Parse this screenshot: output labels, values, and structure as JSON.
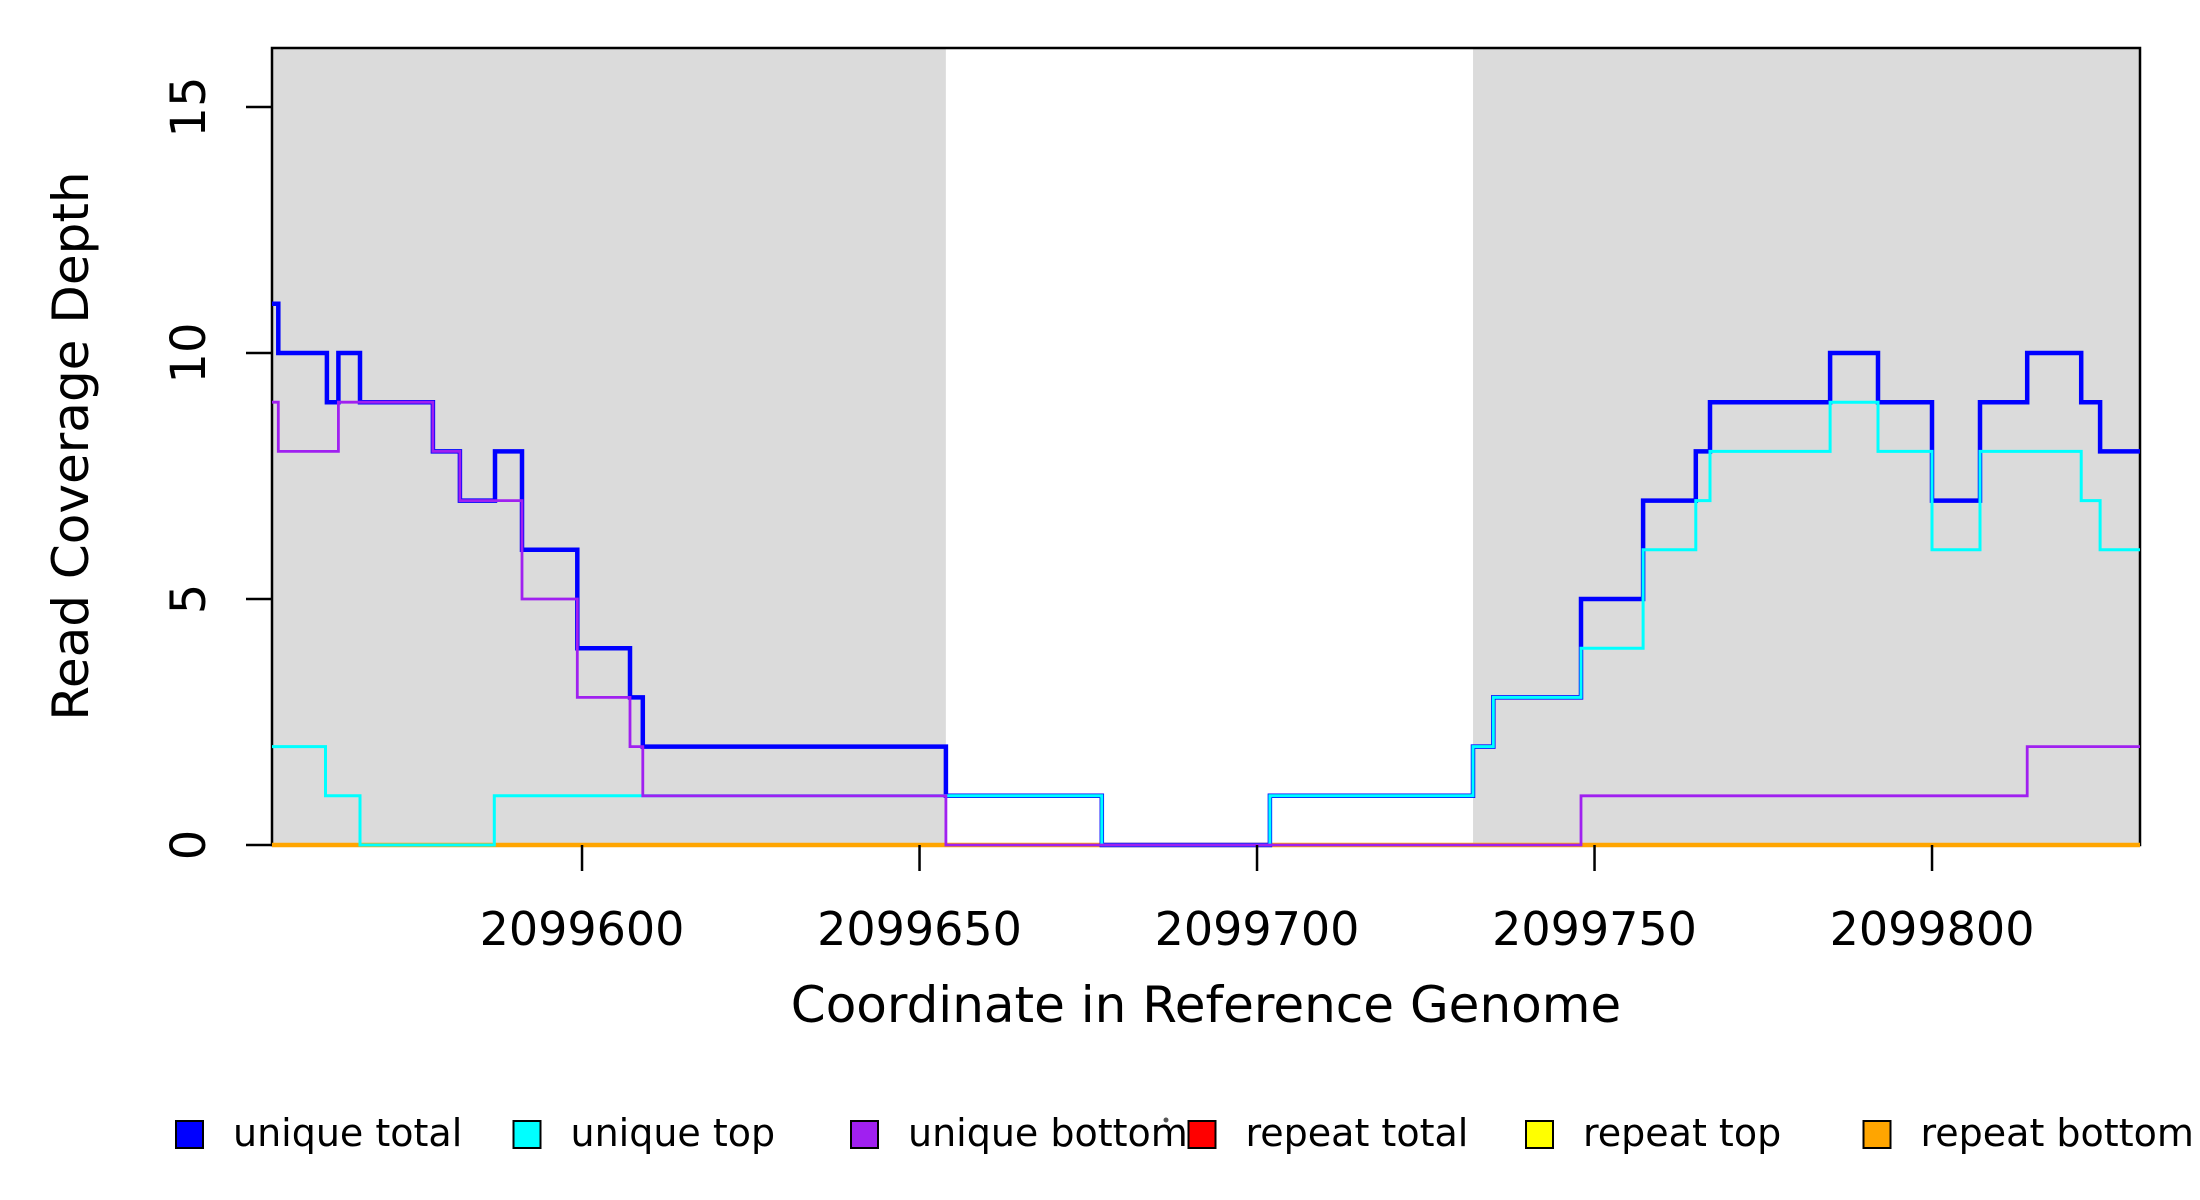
{
  "chart_data": {
    "type": "line",
    "subtype": "step-coverage-plot",
    "title": "",
    "xlabel": "Coordinate in Reference Genome",
    "ylabel": "Read Coverage Depth",
    "xlim": [
      2099554.07,
      2099830.81
    ],
    "ylim": [
      0,
      16.2
    ],
    "grid": false,
    "x_ticks": [
      {
        "value": 2099600,
        "label": "2099600"
      },
      {
        "value": 2099650,
        "label": "2099650"
      },
      {
        "value": 2099700,
        "label": "2099700"
      },
      {
        "value": 2099750,
        "label": "2099750"
      },
      {
        "value": 2099800,
        "label": "2099800"
      }
    ],
    "y_ticks": [
      {
        "value": 0,
        "label": "0"
      },
      {
        "value": 5,
        "label": "5"
      },
      {
        "value": 10,
        "label": "10"
      },
      {
        "value": 15,
        "label": "15"
      }
    ],
    "shade_color": "#DBDBDB",
    "shaded_regions": [
      {
        "x0": 2099554.07,
        "x1": 2099653.9
      },
      {
        "x0": 2099732.0,
        "x1": 2099830.81
      }
    ],
    "series": [
      {
        "name": "repeat total",
        "color": "#FF0000",
        "width": 3,
        "start": 0,
        "breaks": []
      },
      {
        "name": "repeat top",
        "color": "#FFFF00",
        "width": 3,
        "start": 0,
        "breaks": []
      },
      {
        "name": "repeat bottom",
        "color": "#FFA500",
        "width": 4.5,
        "start": 0,
        "breaks": []
      },
      {
        "name": "unique total",
        "color": "#0000FF",
        "width": 4.5,
        "start": 11,
        "breaks": [
          [
            2099555.0,
            10
          ],
          [
            2099562.2,
            9
          ],
          [
            2099563.9,
            10
          ],
          [
            2099567.1,
            9
          ],
          [
            2099577.9,
            8
          ],
          [
            2099581.9,
            7
          ],
          [
            2099587.1,
            8
          ],
          [
            2099591.1,
            6
          ],
          [
            2099599.3,
            4
          ],
          [
            2099607.1,
            3
          ],
          [
            2099609.0,
            2
          ],
          [
            2099653.9,
            1
          ],
          [
            2099677.0,
            0
          ],
          [
            2099701.9,
            1
          ],
          [
            2099732.0,
            2
          ],
          [
            2099735.0,
            3
          ],
          [
            2099748.0,
            5
          ],
          [
            2099757.2,
            7
          ],
          [
            2099765.0,
            8
          ],
          [
            2099767.1,
            9
          ],
          [
            2099784.9,
            10
          ],
          [
            2099792.0,
            9
          ],
          [
            2099800.0,
            7
          ],
          [
            2099807.1,
            9
          ],
          [
            2099814.1,
            10
          ],
          [
            2099822.1,
            9
          ],
          [
            2099824.9,
            8
          ]
        ]
      },
      {
        "name": "unique top",
        "color": "#00FFFF",
        "width": 3,
        "start": 2,
        "breaks": [
          [
            2099562.0,
            1
          ],
          [
            2099567.1,
            0
          ],
          [
            2099587.0,
            1
          ],
          [
            2099677.0,
            0
          ],
          [
            2099701.9,
            1
          ],
          [
            2099732.0,
            2
          ],
          [
            2099735.0,
            3
          ],
          [
            2099748.0,
            4
          ],
          [
            2099757.2,
            6
          ],
          [
            2099765.0,
            7
          ],
          [
            2099767.1,
            8
          ],
          [
            2099784.9,
            9
          ],
          [
            2099792.0,
            8
          ],
          [
            2099800.0,
            6
          ],
          [
            2099807.1,
            8
          ],
          [
            2099822.1,
            7
          ],
          [
            2099824.9,
            6
          ]
        ]
      },
      {
        "name": "unique bottom",
        "color": "#A020F0",
        "width": 2.8,
        "start": 9,
        "breaks": [
          [
            2099555.0,
            8
          ],
          [
            2099563.9,
            9
          ],
          [
            2099577.9,
            8
          ],
          [
            2099581.9,
            7
          ],
          [
            2099591.1,
            5
          ],
          [
            2099599.3,
            3
          ],
          [
            2099607.1,
            2
          ],
          [
            2099609.0,
            1
          ],
          [
            2099653.9,
            0
          ],
          [
            2099748.0,
            1
          ],
          [
            2099814.1,
            2
          ]
        ]
      }
    ],
    "legend": {
      "position": "bottom",
      "items": [
        {
          "label": "unique total",
          "color": "#0000FF"
        },
        {
          "label": "unique top",
          "color": "#00FFFF"
        },
        {
          "label": "unique bottom",
          "color": "#A020F0"
        },
        {
          "label": "repeat total",
          "color": "#FF0000"
        },
        {
          "label": "repeat top",
          "color": "#FFFF00"
        },
        {
          "label": "repeat bottom",
          "color": "#FFA500"
        }
      ]
    }
  }
}
